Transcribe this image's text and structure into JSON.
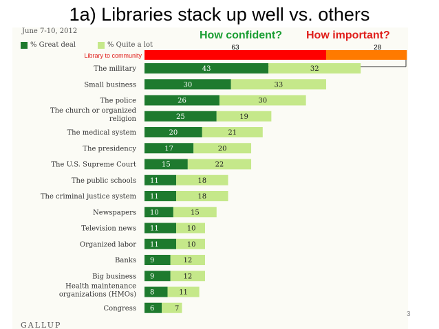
{
  "slide": {
    "title": "1a) Libraries stack up well vs. others",
    "page_number": "3"
  },
  "headers": {
    "confident": "How confident?",
    "important": "How important?"
  },
  "date": "June 7-10, 2012",
  "footer_logo": "GALLUP",
  "colors": {
    "great_deal": "#1e7a2e",
    "quite_a_lot": "#c5e88a",
    "library_confident": "#ff0000",
    "library_important": "#ff7a00",
    "confident_header": "#1a9e32",
    "important_header": "#e0201c"
  },
  "chart_data": {
    "type": "bar",
    "orientation": "horizontal",
    "stacked": true,
    "legend": [
      "% Great deal",
      "% Quite a lot"
    ],
    "highlight": {
      "label": "Library to community",
      "values": [
        63,
        28
      ]
    },
    "categories": [
      "The military",
      "Small business",
      "The police",
      "The church or organized religion",
      "The medical system",
      "The presidency",
      "The U.S. Supreme Court",
      "The public schools",
      "The criminal justice system",
      "Newspapers",
      "Television news",
      "Organized labor",
      "Banks",
      "Big business",
      "Health maintenance organizations (HMOs)",
      "Congress"
    ],
    "series": [
      {
        "name": "% Great deal",
        "values": [
          43,
          30,
          26,
          25,
          20,
          17,
          15,
          11,
          11,
          10,
          11,
          11,
          9,
          9,
          8,
          6
        ]
      },
      {
        "name": "% Quite a lot",
        "values": [
          32,
          33,
          30,
          19,
          21,
          20,
          22,
          18,
          18,
          15,
          10,
          10,
          12,
          12,
          11,
          7
        ]
      }
    ]
  }
}
